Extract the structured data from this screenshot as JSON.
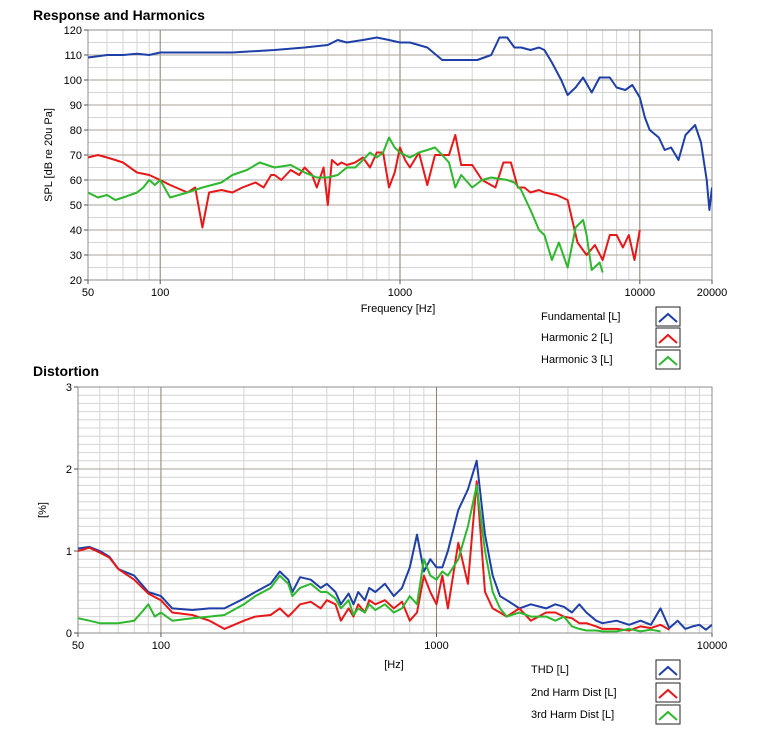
{
  "chart_data": [
    {
      "type": "line",
      "title": "Response and Harmonics",
      "xlabel": "Frequency [Hz]",
      "ylabel": "SPL [dB re 20u Pa]",
      "xscale": "log",
      "xlim": [
        50,
        20000
      ],
      "ylim": [
        20,
        120
      ],
      "xticks": [
        50,
        100,
        1000,
        10000,
        20000
      ],
      "xtick_labels": [
        "50",
        "100",
        "1000",
        "10000",
        "20000"
      ],
      "yticks": [
        20,
        30,
        40,
        50,
        60,
        70,
        80,
        90,
        100,
        110,
        120
      ],
      "ytick_labels": [
        "20",
        "30",
        "40",
        "50",
        "60",
        "70",
        "80",
        "90",
        "100",
        "110",
        "120"
      ],
      "grid": true,
      "legend_position": "bottom-right",
      "series": [
        {
          "name": "Fundamental [L]",
          "color": "#1f3fa8",
          "x": [
            50,
            55,
            60,
            70,
            80,
            90,
            100,
            130,
            200,
            300,
            400,
            500,
            550,
            600,
            700,
            800,
            900,
            1000,
            1100,
            1300,
            1500,
            1800,
            2100,
            2400,
            2600,
            2800,
            3000,
            3200,
            3500,
            3800,
            4000,
            4300,
            4700,
            5000,
            5400,
            5800,
            6300,
            6800,
            7500,
            8000,
            8700,
            9300,
            10000,
            10500,
            11000,
            12000,
            12700,
            13500,
            14500,
            15500,
            17000,
            18000,
            19000,
            19500,
            20000
          ],
          "values": [
            109,
            109.5,
            110,
            110,
            110.5,
            110,
            111,
            111,
            111,
            112,
            113,
            114,
            116,
            115,
            116,
            117,
            116,
            115,
            115,
            113,
            108,
            108,
            108,
            110,
            117,
            117,
            113,
            113,
            112,
            113,
            112,
            107,
            100,
            94,
            97,
            101,
            95,
            101,
            101,
            97,
            96,
            98,
            93,
            85,
            80,
            77,
            72,
            73,
            68,
            78,
            82,
            75,
            60,
            48,
            57
          ]
        },
        {
          "name": "Harmonic 2 [L]",
          "color": "#e81818",
          "x": [
            50,
            55,
            60,
            65,
            70,
            80,
            90,
            100,
            110,
            130,
            140,
            150,
            160,
            180,
            200,
            220,
            250,
            270,
            290,
            300,
            320,
            350,
            380,
            400,
            430,
            450,
            480,
            500,
            520,
            550,
            570,
            600,
            650,
            700,
            750,
            800,
            850,
            900,
            950,
            1000,
            1050,
            1100,
            1200,
            1300,
            1400,
            1500,
            1600,
            1700,
            1800,
            2000,
            2200,
            2500,
            2700,
            2900,
            3100,
            3300,
            3500,
            3800,
            4000,
            4500,
            5000,
            5500,
            6000,
            6500,
            7000,
            7500,
            8000,
            8500,
            9000,
            9500,
            10000
          ],
          "values": [
            69,
            70,
            69,
            68,
            67,
            63,
            62,
            60,
            58,
            55,
            57,
            41,
            55,
            56,
            55,
            57,
            59,
            57,
            62,
            62,
            60,
            64,
            62,
            65,
            62,
            57,
            65,
            50,
            68,
            66,
            67,
            66,
            67,
            69,
            65,
            71,
            71,
            57,
            63,
            73,
            68,
            65,
            71,
            58,
            70,
            70,
            70,
            78,
            66,
            66,
            60,
            57,
            67,
            67,
            57,
            57,
            55,
            56,
            55,
            54,
            52,
            35,
            30,
            34,
            28,
            38,
            38,
            33,
            38,
            28,
            40
          ]
        },
        {
          "name": "Harmonic 3 [L]",
          "color": "#2db82d",
          "x": [
            50,
            55,
            60,
            65,
            70,
            75,
            80,
            85,
            90,
            95,
            100,
            110,
            130,
            150,
            180,
            200,
            230,
            260,
            300,
            350,
            400,
            450,
            500,
            550,
            600,
            650,
            700,
            750,
            800,
            850,
            900,
            950,
            1000,
            1100,
            1200,
            1300,
            1400,
            1500,
            1600,
            1700,
            1800,
            2000,
            2200,
            2400,
            2800,
            3000,
            3200,
            3500,
            3800,
            4000,
            4300,
            4600,
            5000,
            5400,
            5800,
            6000,
            6300,
            6800,
            7000
          ],
          "values": [
            55,
            53,
            54,
            52,
            53,
            54,
            55,
            57,
            60,
            58,
            60,
            53,
            55,
            57,
            59,
            62,
            64,
            67,
            65,
            66,
            63,
            61,
            61,
            62,
            65,
            65,
            68,
            71,
            69,
            71,
            77,
            73,
            71,
            69,
            71,
            72,
            73,
            70,
            67,
            57,
            62,
            57,
            60,
            61,
            60,
            59,
            56,
            48,
            40,
            38,
            28,
            35,
            25,
            41,
            44,
            38,
            24,
            27,
            23
          ]
        }
      ]
    },
    {
      "type": "line",
      "title": "Distortion",
      "xlabel": "[Hz]",
      "ylabel": "[%]",
      "xscale": "log",
      "xlim": [
        50,
        10000
      ],
      "ylim": [
        0,
        3
      ],
      "xticks": [
        50,
        100,
        1000,
        10000
      ],
      "xtick_labels": [
        "50",
        "100",
        "1000",
        "10000"
      ],
      "yticks": [
        0,
        1,
        2,
        3
      ],
      "ytick_labels": [
        "0",
        "1",
        "2",
        "3"
      ],
      "grid": true,
      "legend_position": "bottom-right",
      "series": [
        {
          "name": "THD [L]",
          "color": "#1f3fa8",
          "x": [
            50,
            55,
            60,
            65,
            70,
            80,
            90,
            100,
            110,
            130,
            150,
            170,
            200,
            220,
            250,
            270,
            290,
            300,
            320,
            350,
            380,
            400,
            430,
            450,
            480,
            500,
            520,
            550,
            570,
            600,
            650,
            700,
            750,
            800,
            850,
            900,
            950,
            1000,
            1050,
            1100,
            1200,
            1300,
            1400,
            1500,
            1600,
            1700,
            1800,
            2000,
            2200,
            2500,
            2700,
            2900,
            3100,
            3300,
            3500,
            3800,
            4000,
            4500,
            5000,
            5500,
            6000,
            6500,
            7000,
            7500,
            8000,
            8500,
            9000,
            9500,
            10000
          ],
          "values": [
            1.03,
            1.05,
            1.0,
            0.93,
            0.78,
            0.7,
            0.5,
            0.45,
            0.3,
            0.28,
            0.3,
            0.3,
            0.42,
            0.5,
            0.6,
            0.75,
            0.65,
            0.5,
            0.68,
            0.65,
            0.55,
            0.6,
            0.5,
            0.35,
            0.48,
            0.35,
            0.5,
            0.4,
            0.55,
            0.5,
            0.6,
            0.45,
            0.55,
            0.8,
            1.2,
            0.75,
            0.9,
            0.8,
            0.8,
            1.0,
            1.5,
            1.75,
            2.1,
            1.2,
            0.7,
            0.45,
            0.4,
            0.3,
            0.35,
            0.3,
            0.35,
            0.32,
            0.25,
            0.35,
            0.25,
            0.15,
            0.12,
            0.15,
            0.1,
            0.15,
            0.1,
            0.3,
            0.06,
            0.15,
            0.05,
            0.08,
            0.1,
            0.04,
            0.1
          ]
        },
        {
          "name": "2nd Harm Dist [L]",
          "color": "#e81818",
          "x": [
            50,
            55,
            60,
            65,
            70,
            80,
            90,
            100,
            110,
            130,
            150,
            170,
            200,
            220,
            250,
            270,
            290,
            300,
            320,
            350,
            380,
            400,
            430,
            450,
            480,
            500,
            520,
            550,
            570,
            600,
            650,
            700,
            750,
            800,
            850,
            900,
            950,
            1000,
            1050,
            1100,
            1200,
            1300,
            1400,
            1500,
            1600,
            1700,
            1800,
            2000,
            2200,
            2500,
            2700,
            2900,
            3100,
            3300,
            3500,
            3800,
            4000,
            4500,
            5000,
            5500,
            6000,
            6500,
            7000
          ],
          "values": [
            1.0,
            1.04,
            0.98,
            0.92,
            0.78,
            0.65,
            0.48,
            0.4,
            0.25,
            0.22,
            0.15,
            0.05,
            0.15,
            0.2,
            0.22,
            0.3,
            0.2,
            0.25,
            0.35,
            0.38,
            0.3,
            0.4,
            0.35,
            0.15,
            0.3,
            0.2,
            0.35,
            0.25,
            0.4,
            0.35,
            0.4,
            0.3,
            0.38,
            0.15,
            0.25,
            0.7,
            0.5,
            0.35,
            0.7,
            0.3,
            1.1,
            0.6,
            1.85,
            0.5,
            0.3,
            0.25,
            0.2,
            0.3,
            0.15,
            0.25,
            0.25,
            0.2,
            0.18,
            0.12,
            0.12,
            0.08,
            0.05,
            0.05,
            0.03,
            0.08,
            0.06,
            0.1,
            0.04
          ]
        },
        {
          "name": "3rd Harm Dist [L]",
          "color": "#2db82d",
          "x": [
            50,
            55,
            60,
            65,
            70,
            80,
            85,
            90,
            95,
            100,
            110,
            130,
            150,
            170,
            200,
            220,
            250,
            270,
            290,
            300,
            320,
            350,
            380,
            400,
            430,
            450,
            480,
            500,
            520,
            550,
            570,
            600,
            650,
            700,
            750,
            800,
            850,
            900,
            950,
            1000,
            1050,
            1100,
            1200,
            1300,
            1400,
            1500,
            1600,
            1700,
            1800,
            2000,
            2200,
            2500,
            2700,
            2900,
            3100,
            3300,
            3500,
            3800,
            4000,
            4500,
            5000,
            5500,
            6000,
            6500
          ],
          "values": [
            0.18,
            0.15,
            0.12,
            0.12,
            0.12,
            0.15,
            0.25,
            0.35,
            0.2,
            0.25,
            0.15,
            0.18,
            0.2,
            0.22,
            0.35,
            0.45,
            0.55,
            0.7,
            0.6,
            0.45,
            0.55,
            0.6,
            0.5,
            0.5,
            0.42,
            0.3,
            0.4,
            0.22,
            0.3,
            0.25,
            0.35,
            0.28,
            0.35,
            0.25,
            0.3,
            0.45,
            0.35,
            0.9,
            0.7,
            0.65,
            0.75,
            0.7,
            0.9,
            1.3,
            1.8,
            1.0,
            0.5,
            0.3,
            0.2,
            0.25,
            0.2,
            0.2,
            0.15,
            0.2,
            0.08,
            0.05,
            0.03,
            0.03,
            0.02,
            0.02,
            0.05,
            0.02,
            0.04,
            0.02
          ]
        }
      ]
    }
  ]
}
